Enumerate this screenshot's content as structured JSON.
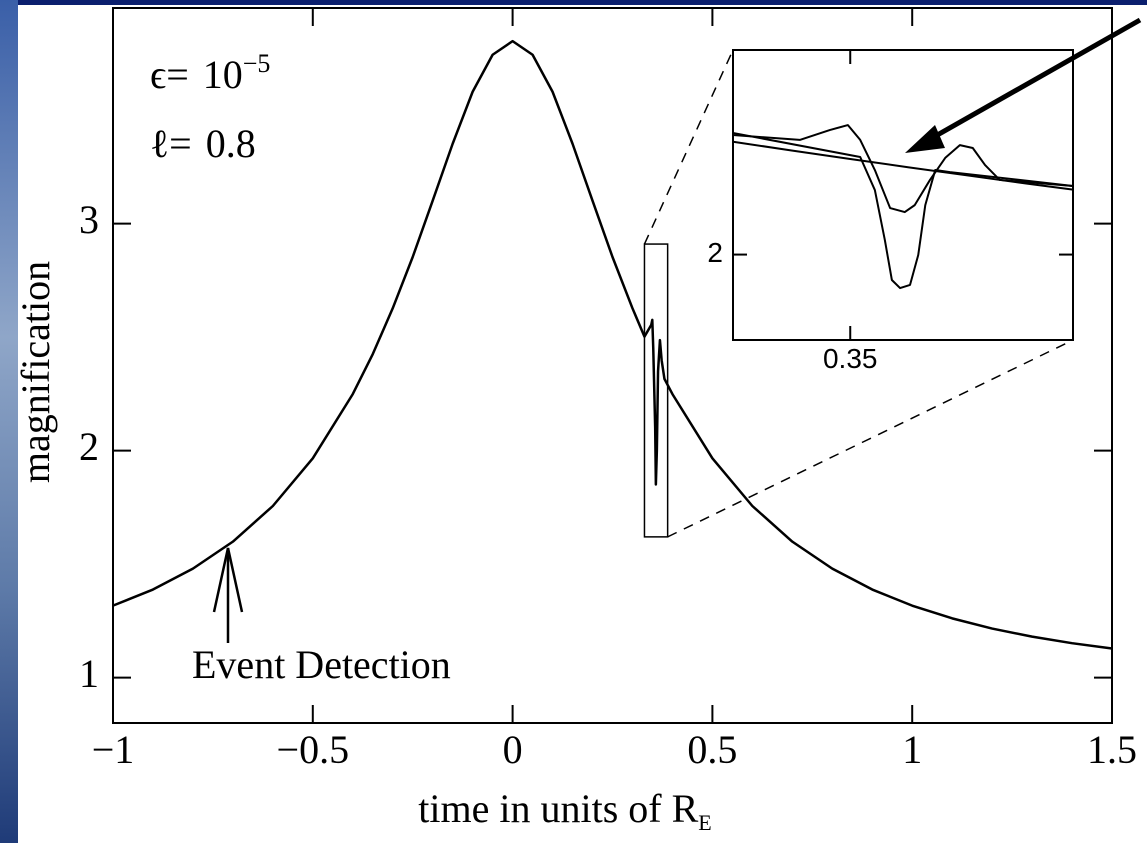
{
  "chart_data": [
    {
      "type": "line",
      "x_label": "time in units of R",
      "x_label_sub": "E",
      "y_label": "magnification",
      "annotations": {
        "epsilon_symbol": "ϵ=",
        "epsilon_base": "10",
        "epsilon_exp": "−5",
        "ell_symbol": "ℓ=",
        "ell_value": "0.8",
        "event": "Event Detection"
      },
      "xlim": [
        -1,
        1.5
      ],
      "ylim": [
        0.8,
        3.95
      ],
      "xticks": [
        {
          "value": -1,
          "label": "−1"
        },
        {
          "value": -0.5,
          "label": "−0.5"
        },
        0,
        0.5,
        1,
        1.5
      ],
      "yticks": [
        1,
        2,
        3
      ],
      "x": [
        -1,
        -0.9,
        -0.8,
        -0.7,
        -0.6,
        -0.5,
        -0.4,
        -0.35,
        -0.3,
        -0.25,
        -0.2,
        -0.15,
        -0.1,
        -0.05,
        0,
        0.05,
        0.1,
        0.15,
        0.2,
        0.25,
        0.3,
        0.33,
        0.347,
        0.3496,
        0.352,
        0.3568,
        0.3585,
        0.361,
        0.364,
        0.3687,
        0.373,
        0.38,
        0.4,
        0.5,
        0.6,
        0.7,
        0.8,
        0.9,
        1,
        1.1,
        1.2,
        1.3,
        1.4,
        1.5
      ],
      "series": [
        {
          "color": "#000000",
          "values": [
            1.317,
            1.388,
            1.48,
            1.599,
            1.756,
            1.966,
            2.249,
            2.425,
            2.627,
            2.853,
            3.101,
            3.352,
            3.581,
            3.744,
            3.804,
            3.744,
            3.581,
            3.352,
            3.101,
            2.853,
            2.627,
            2.502,
            2.554,
            2.576,
            2.45,
            2.1,
            1.851,
            2.0,
            2.35,
            2.487,
            2.398,
            2.316,
            2.249,
            1.966,
            1.756,
            1.599,
            1.48,
            1.388,
            1.317,
            1.261,
            1.216,
            1.1805,
            1.1516,
            1.128
          ]
        }
      ]
    },
    {
      "type": "line",
      "xlim": [
        0.33,
        0.388
      ],
      "ylim": [
        1.62,
        2.91
      ],
      "xticks": [
        0.35
      ],
      "yticks": [
        2
      ],
      "series": [
        {
          "color": "#000000",
          "x": [
            0.33,
            0.34,
            0.35,
            0.36,
            0.37,
            0.38,
            0.388
          ],
          "values": [
            2.502,
            2.463,
            2.425,
            2.388,
            2.352,
            2.316,
            2.289
          ]
        },
        {
          "color": "#000000",
          "x": [
            0.33,
            0.3414,
            0.3465,
            0.3496,
            0.3517,
            0.3542,
            0.3568,
            0.3593,
            0.361,
            0.3636,
            0.3662,
            0.3687,
            0.3709,
            0.373,
            0.3755,
            0.388
          ],
          "values": [
            2.532,
            2.51,
            2.554,
            2.576,
            2.51,
            2.376,
            2.207,
            2.189,
            2.22,
            2.332,
            2.43,
            2.487,
            2.474,
            2.398,
            2.332,
            2.305
          ]
        },
        {
          "color": "#000000",
          "x": [
            0.33,
            0.3517,
            0.3542,
            0.3559,
            0.3571,
            0.3585,
            0.3602,
            0.3616,
            0.3628,
            0.3645,
            0.367,
            0.388
          ],
          "values": [
            2.541,
            2.434,
            2.287,
            2.065,
            1.887,
            1.851,
            1.865,
            1.998,
            2.22,
            2.376,
            2.367,
            2.305
          ]
        }
      ]
    }
  ]
}
